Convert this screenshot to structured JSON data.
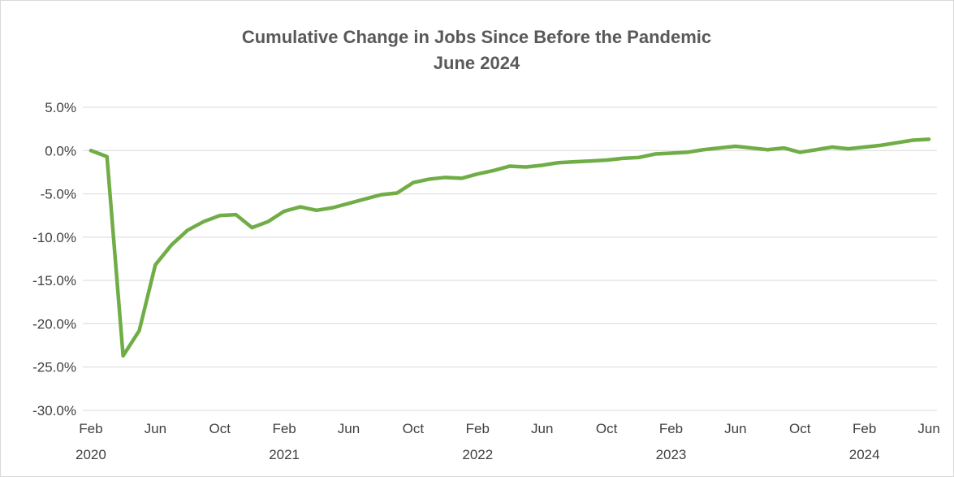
{
  "chart_data": {
    "type": "line",
    "title": "Cumulative Change in Jobs Since Before the Pandemic",
    "subtitle": "June 2024",
    "xlabel": "",
    "ylabel": "",
    "ylim": [
      -30,
      5
    ],
    "y_ticks": [
      {
        "value": 5,
        "label": "5.0%"
      },
      {
        "value": 0,
        "label": "0.0%"
      },
      {
        "value": -5,
        "label": "-5.0%"
      },
      {
        "value": -10,
        "label": "-10.0%"
      },
      {
        "value": -15,
        "label": "-15.0%"
      },
      {
        "value": -20,
        "label": "-20.0%"
      },
      {
        "value": -25,
        "label": "-25.0%"
      },
      {
        "value": -30,
        "label": "-30.0%"
      }
    ],
    "x_ticks": [
      {
        "month": "Feb",
        "year": "2020"
      },
      {
        "month": "Jun",
        "year": ""
      },
      {
        "month": "Oct",
        "year": ""
      },
      {
        "month": "Feb",
        "year": "2021"
      },
      {
        "month": "Jun",
        "year": ""
      },
      {
        "month": "Oct",
        "year": ""
      },
      {
        "month": "Feb",
        "year": "2022"
      },
      {
        "month": "Jun",
        "year": ""
      },
      {
        "month": "Oct",
        "year": ""
      },
      {
        "month": "Feb",
        "year": "2023"
      },
      {
        "month": "Jun",
        "year": ""
      },
      {
        "month": "Oct",
        "year": ""
      },
      {
        "month": "Feb",
        "year": "2024"
      },
      {
        "month": "Jun",
        "year": ""
      }
    ],
    "grid": true,
    "legend": "none",
    "series": [
      {
        "color": "#70ad47",
        "x": [
          "2020-02",
          "2020-03",
          "2020-04",
          "2020-05",
          "2020-06",
          "2020-07",
          "2020-08",
          "2020-09",
          "2020-10",
          "2020-11",
          "2020-12",
          "2021-01",
          "2021-02",
          "2021-03",
          "2021-04",
          "2021-05",
          "2021-06",
          "2021-07",
          "2021-08",
          "2021-09",
          "2021-10",
          "2021-11",
          "2021-12",
          "2022-01",
          "2022-02",
          "2022-03",
          "2022-04",
          "2022-05",
          "2022-06",
          "2022-07",
          "2022-08",
          "2022-09",
          "2022-10",
          "2022-11",
          "2022-12",
          "2023-01",
          "2023-02",
          "2023-03",
          "2023-04",
          "2023-05",
          "2023-06",
          "2023-07",
          "2023-08",
          "2023-09",
          "2023-10",
          "2023-11",
          "2023-12",
          "2024-01",
          "2024-02",
          "2024-03",
          "2024-04",
          "2024-05",
          "2024-06"
        ],
        "values": [
          0.0,
          -0.7,
          -23.7,
          -20.8,
          -13.2,
          -10.9,
          -9.2,
          -8.2,
          -7.5,
          -7.4,
          -8.9,
          -8.2,
          -7.0,
          -6.5,
          -6.9,
          -6.6,
          -6.1,
          -5.6,
          -5.1,
          -4.9,
          -3.7,
          -3.3,
          -3.1,
          -3.2,
          -2.7,
          -2.3,
          -1.8,
          -1.9,
          -1.7,
          -1.4,
          -1.3,
          -1.2,
          -1.1,
          -0.9,
          -0.8,
          -0.4,
          -0.3,
          -0.2,
          0.1,
          0.3,
          0.5,
          0.3,
          0.1,
          0.3,
          -0.2,
          0.1,
          0.4,
          0.2,
          0.4,
          0.6,
          0.9,
          1.2,
          1.3
        ]
      }
    ]
  }
}
